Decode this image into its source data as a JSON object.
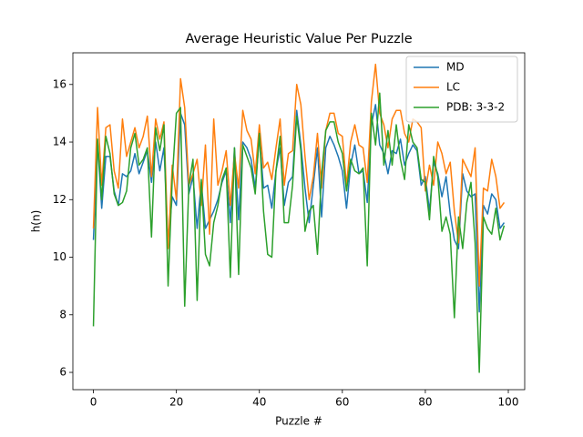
{
  "chart_data": {
    "type": "line",
    "title": "Average Heuristic Value Per Puzzle",
    "x_label": "Puzzle #",
    "y_label": "h(n)",
    "x": [
      0,
      1,
      2,
      3,
      4,
      5,
      6,
      7,
      8,
      9,
      10,
      11,
      12,
      13,
      14,
      15,
      16,
      17,
      18,
      19,
      20,
      21,
      22,
      23,
      24,
      25,
      26,
      27,
      28,
      29,
      30,
      31,
      32,
      33,
      34,
      35,
      36,
      37,
      38,
      39,
      40,
      41,
      42,
      43,
      44,
      45,
      46,
      47,
      48,
      49,
      50,
      51,
      52,
      53,
      54,
      55,
      56,
      57,
      58,
      59,
      60,
      61,
      62,
      63,
      64,
      65,
      66,
      67,
      68,
      69,
      70,
      71,
      72,
      73,
      74,
      75,
      76,
      77,
      78,
      79,
      80,
      81,
      82,
      83,
      84,
      85,
      86,
      87,
      88,
      89,
      90,
      91,
      92,
      93,
      94,
      95,
      96,
      97,
      98,
      99
    ],
    "series": [
      {
        "name": "MD",
        "color": "#1f77b4",
        "values": [
          10.6,
          14.0,
          11.7,
          13.5,
          13.5,
          12.3,
          11.8,
          12.9,
          12.8,
          13.0,
          13.6,
          12.9,
          13.3,
          13.7,
          12.6,
          14.0,
          13.0,
          13.8,
          10.6,
          12.1,
          11.8,
          15.0,
          14.6,
          12.2,
          12.8,
          11.0,
          12.6,
          11.0,
          11.3,
          11.6,
          12.0,
          12.6,
          13.0,
          11.2,
          13.8,
          11.3,
          14.0,
          13.8,
          13.4,
          12.4,
          14.2,
          12.4,
          12.5,
          11.7,
          13.0,
          13.8,
          11.8,
          12.6,
          12.8,
          15.1,
          13.9,
          12.4,
          11.2,
          12.5,
          13.8,
          11.4,
          13.8,
          14.2,
          13.9,
          13.5,
          13.0,
          11.7,
          13.2,
          13.9,
          12.9,
          13.0,
          11.9,
          14.6,
          15.3,
          13.9,
          13.6,
          12.9,
          13.7,
          13.6,
          14.1,
          13.2,
          13.6,
          13.9,
          13.7,
          12.5,
          12.8,
          11.6,
          13.3,
          12.9,
          12.1,
          12.8,
          11.5,
          10.6,
          10.3,
          12.9,
          12.3,
          12.1,
          12.2,
          8.1,
          11.8,
          11.5,
          12.2,
          12.0,
          11.0,
          11.2
        ]
      },
      {
        "name": "LC",
        "color": "#ff7f0e",
        "values": [
          11.0,
          15.2,
          12.5,
          14.5,
          14.6,
          13.0,
          12.4,
          14.8,
          13.5,
          14.0,
          14.5,
          13.8,
          14.2,
          14.9,
          12.8,
          14.8,
          14.1,
          14.7,
          10.3,
          13.2,
          12.0,
          16.2,
          15.2,
          12.5,
          12.9,
          13.4,
          11.8,
          13.9,
          10.8,
          14.8,
          12.5,
          13.0,
          13.7,
          11.8,
          13.6,
          12.4,
          15.1,
          14.4,
          14.1,
          12.9,
          14.6,
          13.1,
          13.3,
          12.7,
          13.8,
          14.8,
          12.5,
          13.6,
          13.7,
          16.0,
          15.3,
          13.5,
          12.0,
          12.8,
          14.3,
          12.4,
          14.4,
          15.0,
          15.0,
          14.3,
          14.2,
          12.5,
          14.0,
          14.6,
          13.9,
          13.8,
          12.6,
          15.4,
          16.7,
          15.0,
          14.6,
          13.8,
          14.8,
          15.1,
          15.1,
          14.3,
          14.0,
          14.8,
          14.7,
          14.5,
          12.3,
          13.2,
          12.5,
          14.0,
          13.6,
          12.9,
          13.3,
          11.6,
          10.5,
          13.4,
          13.1,
          12.8,
          13.8,
          9.0,
          12.4,
          12.3,
          13.4,
          12.8,
          11.7,
          11.9
        ]
      },
      {
        "name": "PDB: 3-3-2",
        "color": "#2ca02c",
        "values": [
          7.6,
          14.1,
          12.0,
          14.2,
          13.6,
          12.2,
          11.8,
          11.9,
          12.3,
          13.8,
          14.3,
          13.2,
          13.4,
          13.8,
          10.7,
          14.5,
          13.7,
          14.6,
          9.0,
          12.7,
          15.0,
          15.2,
          8.3,
          12.5,
          13.4,
          8.5,
          12.7,
          10.1,
          9.7,
          11.2,
          11.8,
          12.7,
          13.1,
          9.3,
          13.8,
          9.4,
          13.9,
          13.5,
          13.1,
          12.2,
          14.3,
          11.6,
          10.1,
          10.0,
          13.0,
          14.2,
          11.2,
          11.2,
          12.5,
          14.9,
          13.7,
          10.9,
          11.6,
          11.8,
          10.1,
          12.9,
          14.4,
          14.7,
          14.7,
          14.0,
          13.6,
          12.3,
          13.4,
          13.0,
          12.9,
          13.1,
          9.7,
          15.0,
          13.9,
          15.7,
          13.2,
          14.4,
          13.2,
          14.6,
          13.4,
          12.7,
          14.6,
          14.0,
          13.8,
          12.7,
          12.6,
          11.3,
          13.5,
          12.8,
          10.9,
          11.4,
          10.8,
          7.9,
          11.4,
          10.3,
          11.9,
          12.6,
          10.5,
          6.0,
          11.4,
          11.0,
          10.8,
          11.7,
          10.6,
          11.1
        ]
      }
    ],
    "xlim": [
      -4.95,
      103.95
    ],
    "ylim": [
      5.4,
      17.1
    ],
    "xticks": [
      0,
      20,
      40,
      60,
      80,
      100
    ],
    "yticks": [
      6,
      8,
      10,
      12,
      14,
      16
    ],
    "legend": "upper right"
  }
}
